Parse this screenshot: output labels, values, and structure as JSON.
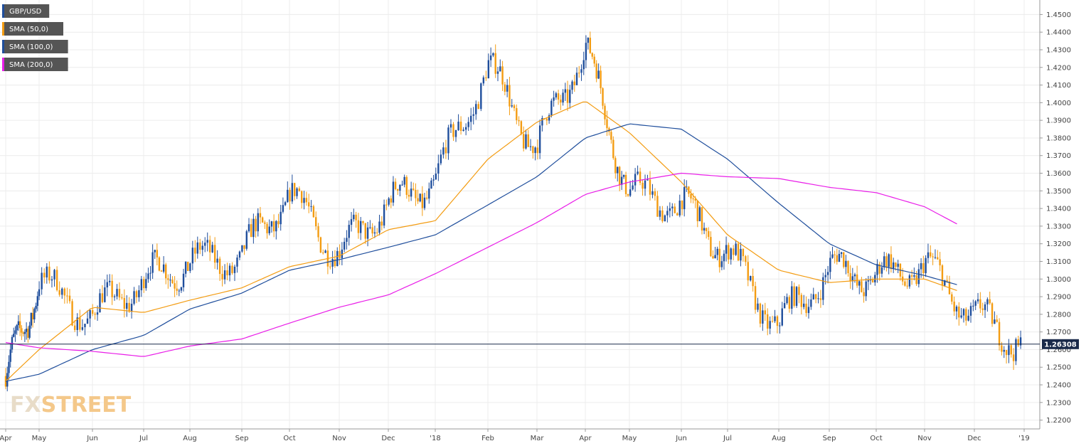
{
  "chart_data": {
    "type": "line",
    "title": "",
    "instrument": "GBP/USD",
    "legend": [
      {
        "label": "GBP/USD",
        "color": "#1f4e9c"
      },
      {
        "label": "SMA (50,0)",
        "color": "#f39c12"
      },
      {
        "label": "SMA (100,0)",
        "color": "#1f4e9c"
      },
      {
        "label": "SMA (200,0)",
        "color": "#e91ee8"
      }
    ],
    "legend_position": "top-left",
    "y_axis_position": "right",
    "ylim": [
      1.215,
      1.455
    ],
    "y_ticks": [
      "1.4500",
      "1.4400",
      "1.4300",
      "1.4200",
      "1.4100",
      "1.4000",
      "1.3900",
      "1.3800",
      "1.3700",
      "1.3600",
      "1.3500",
      "1.3400",
      "1.3300",
      "1.3200",
      "1.3100",
      "1.3000",
      "1.2900",
      "1.2800",
      "1.2700",
      "1.2600",
      "1.2500",
      "1.2400",
      "1.2300",
      "1.2200"
    ],
    "x_ticks": [
      "Apr",
      "May",
      "Jun",
      "Jul",
      "Aug",
      "Sep",
      "Oct",
      "Nov",
      "Dec",
      "'18",
      "Feb",
      "Mar",
      "Apr",
      "May",
      "Jun",
      "Jul",
      "Aug",
      "Sep",
      "Oct",
      "Nov",
      "Dec",
      "'19"
    ],
    "grid": true,
    "current_price": "1.26308",
    "current_price_value": 1.26308,
    "colors": {
      "bull": "#1f4e9c",
      "bear": "#f39c12",
      "sma50": "#f39c12",
      "sma100": "#1f4e9c",
      "sma200": "#e91ee8",
      "grid": "#ececec",
      "legend_bg": "#555555",
      "price_line": "#1a2a4a"
    },
    "series": [
      {
        "name": "GBP/USD",
        "x": [
          "Apr",
          "May",
          "Jun",
          "Jul",
          "Aug",
          "Sep",
          "Oct",
          "Nov",
          "Dec",
          "'18",
          "Feb",
          "Mar",
          "Apr",
          "May",
          "Jun",
          "Jul",
          "Aug",
          "Sep",
          "Oct",
          "Nov",
          "Dec",
          "'19"
        ],
        "values": [
          1.245,
          1.29,
          1.285,
          1.295,
          1.3,
          1.32,
          1.33,
          1.32,
          1.34,
          1.35,
          1.4,
          1.38,
          1.42,
          1.36,
          1.34,
          1.32,
          1.285,
          1.3,
          1.31,
          1.3,
          1.285,
          1.263
        ]
      },
      {
        "name": "SMA (50,0)",
        "x": [
          "Apr",
          "May",
          "Jun",
          "Jul",
          "Aug",
          "Sep",
          "Oct",
          "Nov",
          "Dec",
          "'18",
          "Feb",
          "Mar",
          "Apr",
          "May",
          "Jun",
          "Jul",
          "Aug",
          "Sep",
          "Oct",
          "Nov",
          "Dec"
        ],
        "values": [
          1.242,
          1.26,
          1.284,
          1.281,
          1.288,
          1.295,
          1.307,
          1.313,
          1.328,
          1.333,
          1.368,
          1.389,
          1.401,
          1.383,
          1.355,
          1.325,
          1.305,
          1.298,
          1.3,
          1.3,
          1.29
        ]
      },
      {
        "name": "SMA (100,0)",
        "x": [
          "Apr",
          "May",
          "Jun",
          "Jul",
          "Aug",
          "Sep",
          "Oct",
          "Nov",
          "Dec",
          "'18",
          "Feb",
          "Mar",
          "Apr",
          "May",
          "Jun",
          "Jul",
          "Aug",
          "Sep",
          "Oct",
          "Nov",
          "Dec"
        ],
        "values": [
          1.242,
          1.246,
          1.26,
          1.268,
          1.283,
          1.292,
          1.305,
          1.311,
          1.318,
          1.325,
          1.342,
          1.358,
          1.38,
          1.388,
          1.385,
          1.368,
          1.343,
          1.32,
          1.308,
          1.302,
          1.294
        ]
      },
      {
        "name": "SMA (200,0)",
        "x": [
          "Apr",
          "May",
          "Jun",
          "Jul",
          "Aug",
          "Sep",
          "Oct",
          "Nov",
          "Dec",
          "'18",
          "Feb",
          "Mar",
          "Apr",
          "May",
          "Jun",
          "Jul",
          "Aug",
          "Sep",
          "Oct",
          "Nov",
          "Dec"
        ],
        "values": [
          1.264,
          1.261,
          1.259,
          1.256,
          1.262,
          1.266,
          1.275,
          1.284,
          1.291,
          1.303,
          1.318,
          1.332,
          1.348,
          1.355,
          1.36,
          1.358,
          1.357,
          1.352,
          1.349,
          1.341,
          1.326
        ]
      }
    ]
  },
  "logo": {
    "part1": "FX",
    "part2": "STREET"
  }
}
